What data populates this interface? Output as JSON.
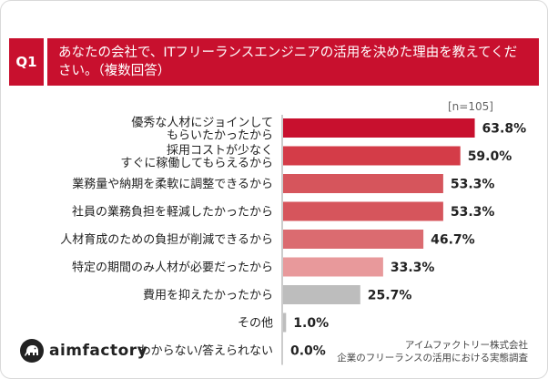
{
  "question": {
    "badge": "Q1",
    "text": "あなたの会社で、ITフリーランスエンジニアの活用を決めた理由を教えてください。（複数回答）"
  },
  "sample_size": "[n=105]",
  "source": {
    "line1": "アイムファクトリー株式会社",
    "line2": "企業のフリーランスの活用における実態調査"
  },
  "logo": {
    "text": "aimfactory",
    "icon": "elephant-icon"
  },
  "chart_data": {
    "type": "bar",
    "orientation": "horizontal",
    "unit": "%",
    "categories": [
      [
        "優秀な人材にジョインして",
        "もらいたかったから"
      ],
      [
        "採用コストが少なく",
        "すぐに稼働してもらえるから"
      ],
      [
        "業務量や納期を柔軟に調整できるから"
      ],
      [
        "社員の業務負担を軽減したかったから"
      ],
      [
        "人材育成のための負担が削減できるから"
      ],
      [
        "特定の期間のみ人材が必要だったから"
      ],
      [
        "費用を抑えたかったから"
      ],
      [
        "その他"
      ],
      [
        "わからない/答えられない"
      ]
    ],
    "values": [
      63.8,
      59.0,
      53.3,
      53.3,
      46.7,
      33.3,
      25.7,
      1.0,
      0.0
    ],
    "value_labels": [
      "63.8%",
      "59.0%",
      "53.3%",
      "53.3%",
      "46.7%",
      "33.3%",
      "25.7%",
      "1.0%",
      "0.0%"
    ],
    "colors": [
      "#c8102e",
      "#d43c48",
      "#d6555c",
      "#d6555c",
      "#db6b70",
      "#e8999b",
      "#bdbdbd",
      "#bdbdbd",
      "#bdbdbd"
    ],
    "xlim": [
      0,
      100
    ],
    "grid": false,
    "legend": "none"
  }
}
